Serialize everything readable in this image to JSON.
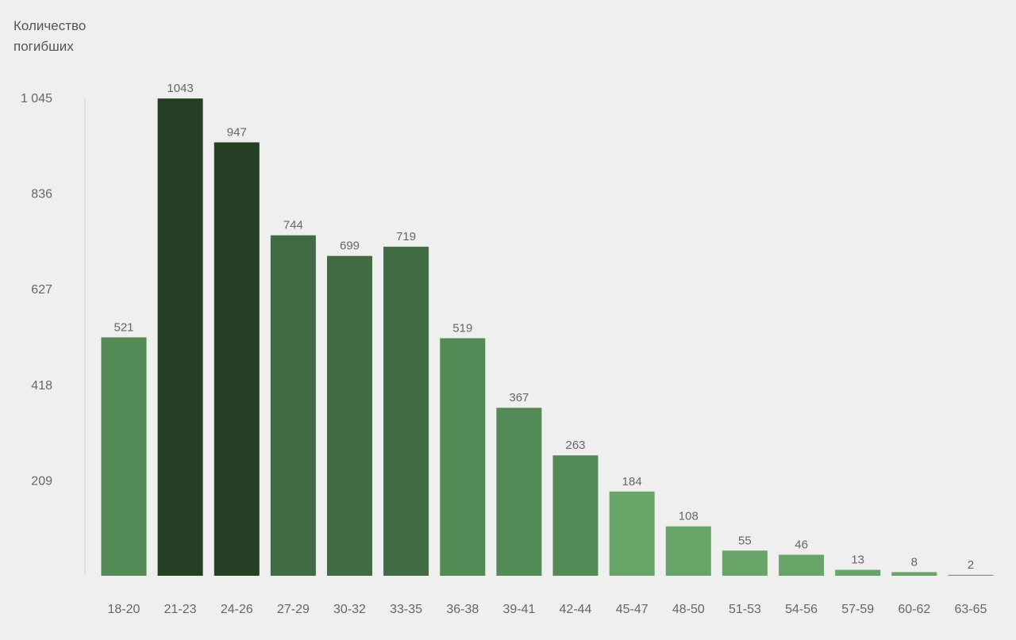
{
  "chart_data": {
    "type": "bar",
    "ylabel_lines": [
      "Количество",
      "погибших"
    ],
    "xlabel": "",
    "categories": [
      "18-20",
      "21-23",
      "24-26",
      "27-29",
      "30-32",
      "33-35",
      "36-38",
      "39-41",
      "42-44",
      "45-47",
      "48-50",
      "51-53",
      "54-56",
      "57-59",
      "60-62",
      "63-65"
    ],
    "values": [
      521,
      1043,
      947,
      744,
      699,
      719,
      519,
      367,
      263,
      184,
      108,
      55,
      46,
      13,
      8,
      2
    ],
    "value_labels": [
      "521",
      "1043",
      "947",
      "744",
      "699",
      "719",
      "519",
      "367",
      "263",
      "184",
      "108",
      "55",
      "46",
      "13",
      "8",
      "2"
    ],
    "yticks": [
      209,
      418,
      627,
      836,
      1045
    ],
    "ytick_labels": [
      "209",
      "418",
      "627",
      "836",
      "1 045"
    ],
    "ylim": [
      0,
      1045
    ],
    "grid": false,
    "legend": "none",
    "bar_colors": [
      "#548a55",
      "#243f24",
      "#243f24",
      "#416b42",
      "#416b42",
      "#416b42",
      "#548a55",
      "#548a55",
      "#548a55",
      "#69a468",
      "#69a468",
      "#69a468",
      "#69a468",
      "#69a468",
      "#69a468",
      "#69a468"
    ],
    "colors": {
      "background": "#efefef",
      "axis": "#dddddd",
      "text": "#555555"
    }
  }
}
